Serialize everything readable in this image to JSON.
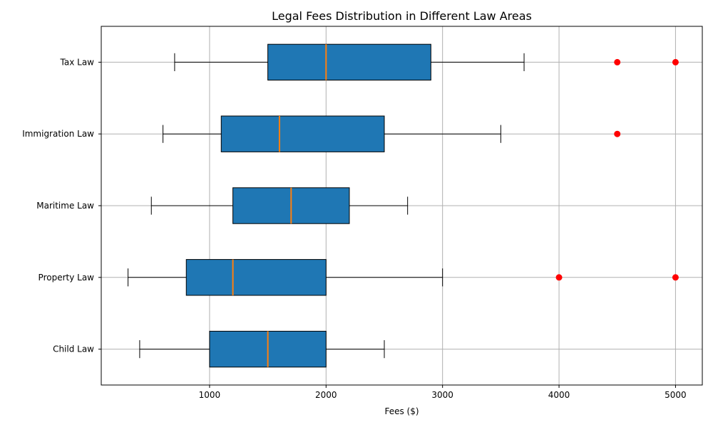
{
  "chart_data": {
    "type": "boxplot",
    "orientation": "horizontal",
    "title": "Legal Fees Distribution in Different Law Areas",
    "xlabel": "Fees ($)",
    "ylabel": "",
    "xlim": [
      70,
      5230
    ],
    "xticks": [
      1000,
      2000,
      3000,
      4000,
      5000
    ],
    "grid": true,
    "categories": [
      "Child Law",
      "Property Law",
      "Maritime Law",
      "Immigration Law",
      "Tax Law"
    ],
    "boxes": [
      {
        "category": "Child Law",
        "whislo": 400,
        "q1": 1000,
        "med": 1500,
        "q3": 2000,
        "whishi": 2500,
        "fliers": []
      },
      {
        "category": "Property Law",
        "whislo": 300,
        "q1": 800,
        "med": 1200,
        "q3": 2000,
        "whishi": 3000,
        "fliers": [
          4000,
          5000
        ]
      },
      {
        "category": "Maritime Law",
        "whislo": 500,
        "q1": 1200,
        "med": 1700,
        "q3": 2200,
        "whishi": 2700,
        "fliers": []
      },
      {
        "category": "Immigration Law",
        "whislo": 600,
        "q1": 1100,
        "med": 1600,
        "q3": 2500,
        "whishi": 3500,
        "fliers": [
          4500
        ]
      },
      {
        "category": "Tax Law",
        "whislo": 700,
        "q1": 1500,
        "med": 2000,
        "q3": 2900,
        "whishi": 3700,
        "fliers": [
          4500,
          5000
        ]
      }
    ],
    "colors": {
      "box_fill": "#1f77b4",
      "median": "#ff7f0e",
      "flier": "#ff0000",
      "grid": "#b0b0b0",
      "axis": "#000000"
    }
  }
}
